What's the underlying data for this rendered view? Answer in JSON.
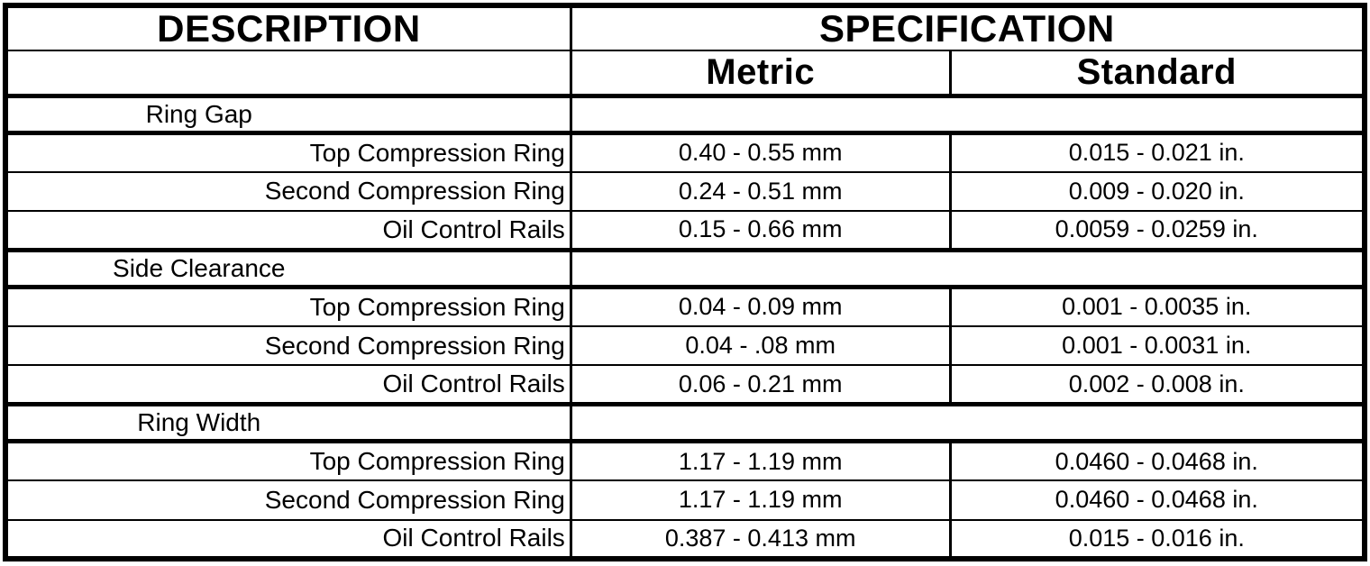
{
  "table": {
    "columns": {
      "description": "DESCRIPTION",
      "specification": "SPECIFICATION",
      "metric": "Metric",
      "standard": "Standard"
    },
    "sections": [
      {
        "label": "Ring Gap",
        "rows": [
          {
            "description": "Top Compression Ring",
            "metric": "0.40 - 0.55 mm",
            "standard": "0.015 - 0.021 in."
          },
          {
            "description": "Second Compression Ring",
            "metric": "0.24 - 0.51 mm",
            "standard": "0.009 - 0.020 in."
          },
          {
            "description": "Oil Control Rails",
            "metric": "0.15 - 0.66 mm",
            "standard": "0.0059 - 0.0259 in."
          }
        ]
      },
      {
        "label": "Side Clearance",
        "rows": [
          {
            "description": "Top Compression Ring",
            "metric": "0.04 - 0.09 mm",
            "standard": "0.001 - 0.0035 in."
          },
          {
            "description": "Second Compression Ring",
            "metric": "0.04 - .08 mm",
            "standard": "0.001 - 0.0031 in."
          },
          {
            "description": "Oil Control Rails",
            "metric": "0.06 - 0.21 mm",
            "standard": "0.002 - 0.008 in."
          }
        ]
      },
      {
        "label": "Ring Width",
        "rows": [
          {
            "description": "Top Compression Ring",
            "metric": "1.17 - 1.19 mm",
            "standard": "0.0460 - 0.0468 in."
          },
          {
            "description": "Second Compression Ring",
            "metric": "1.17 - 1.19 mm",
            "standard": "0.0460 - 0.0468 in."
          },
          {
            "description": "Oil Control Rails",
            "metric": "0.387 - 0.413 mm",
            "standard": "0.015 - 0.016 in."
          }
        ]
      }
    ]
  },
  "colors": {
    "border": "#000000",
    "background": "#ffffff",
    "text": "#000000"
  },
  "chart_data": {
    "type": "table",
    "title": "",
    "columns": [
      "DESCRIPTION",
      "SPECIFICATION Metric",
      "SPECIFICATION Standard"
    ],
    "rows": [
      [
        "Ring Gap",
        "",
        ""
      ],
      [
        "Top Compression Ring",
        "0.40 - 0.55 mm",
        "0.015 - 0.021 in."
      ],
      [
        "Second Compression Ring",
        "0.24 - 0.51 mm",
        "0.009 - 0.020 in."
      ],
      [
        "Oil Control Rails",
        "0.15 - 0.66 mm",
        "0.0059 - 0.0259 in."
      ],
      [
        "Side Clearance",
        "",
        ""
      ],
      [
        "Top Compression Ring",
        "0.04 - 0.09 mm",
        "0.001 - 0.0035 in."
      ],
      [
        "Second Compression Ring",
        "0.04 - .08 mm",
        "0.001 - 0.0031 in."
      ],
      [
        "Oil Control Rails",
        "0.06 - 0.21 mm",
        "0.002 - 0.008 in."
      ],
      [
        "Ring Width",
        "",
        ""
      ],
      [
        "Top Compression Ring",
        "1.17 - 1.19 mm",
        "0.0460 - 0.0468 in."
      ],
      [
        "Second Compression Ring",
        "1.17 - 1.19 mm",
        "0.0460 - 0.0468 in."
      ],
      [
        "Oil Control Rails",
        "0.387 - 0.413 mm",
        "0.015 - 0.016 in."
      ]
    ]
  }
}
